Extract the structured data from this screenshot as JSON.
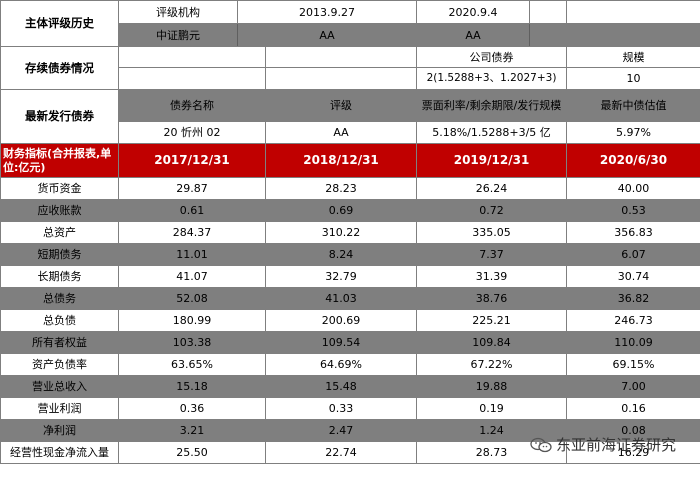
{
  "rating_history": {
    "label": "主体评级历史",
    "row1": [
      "评级机构",
      "2013.9.27",
      "2020.9.4"
    ],
    "row2": [
      "中证鹏元",
      "AA",
      "AA"
    ]
  },
  "outstanding_bonds": {
    "label": "存续债券情况",
    "header": [
      "公司债券",
      "规模"
    ],
    "values": [
      "2(1.5288+3、1.2027+3)",
      "10"
    ]
  },
  "latest_issue": {
    "label": "最新发行债券",
    "headers": [
      "债券名称",
      "评级",
      "票面利率/剩余期限/发行规模",
      "最新中债估值"
    ],
    "values": [
      "20 忻州 02",
      "AA",
      "5.18%/1.5288+3/5 亿",
      "5.97%"
    ]
  },
  "financials": {
    "label": "财务指标(合并报表,单位:亿元)",
    "periods": [
      "2017/12/31",
      "2018/12/31",
      "2019/12/31",
      "2020/6/30"
    ],
    "rows": [
      {
        "name": "货币资金",
        "v": [
          "29.87",
          "28.23",
          "26.24",
          "40.00"
        ]
      },
      {
        "name": "应收账款",
        "v": [
          "0.61",
          "0.69",
          "0.72",
          "0.53"
        ]
      },
      {
        "name": "总资产",
        "v": [
          "284.37",
          "310.22",
          "335.05",
          "356.83"
        ]
      },
      {
        "name": "短期债务",
        "v": [
          "11.01",
          "8.24",
          "7.37",
          "6.07"
        ]
      },
      {
        "name": "长期债务",
        "v": [
          "41.07",
          "32.79",
          "31.39",
          "30.74"
        ]
      },
      {
        "name": "总债务",
        "v": [
          "52.08",
          "41.03",
          "38.76",
          "36.82"
        ]
      },
      {
        "name": "总负债",
        "v": [
          "180.99",
          "200.69",
          "225.21",
          "246.73"
        ]
      },
      {
        "name": "所有者权益",
        "v": [
          "103.38",
          "109.54",
          "109.84",
          "110.09"
        ]
      },
      {
        "name": "资产负债率",
        "v": [
          "63.65%",
          "64.69%",
          "67.22%",
          "69.15%"
        ]
      },
      {
        "name": "营业总收入",
        "v": [
          "15.18",
          "15.48",
          "19.88",
          "7.00"
        ]
      },
      {
        "name": "营业利润",
        "v": [
          "0.36",
          "0.33",
          "0.19",
          "0.16"
        ]
      },
      {
        "name": "净利润",
        "v": [
          "3.21",
          "2.47",
          "1.24",
          "0.08"
        ]
      },
      {
        "name": "经营性现金净流入量",
        "v": [
          "25.50",
          "22.74",
          "28.73",
          "16.29"
        ]
      }
    ]
  },
  "watermark": {
    "text": "东亚前海证券研究",
    "icon": "wechat-icon"
  }
}
